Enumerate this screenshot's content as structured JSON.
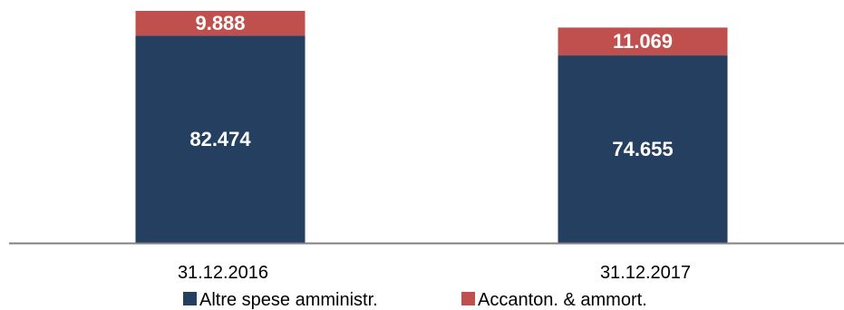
{
  "chart_data": {
    "type": "bar",
    "stacked": true,
    "categories": [
      "31.12.2016",
      "31.12.2017"
    ],
    "series": [
      {
        "name": "Altre spese amministr.",
        "values": [
          82474,
          74655
        ],
        "labels": [
          "82.474",
          "74.655"
        ],
        "color": "#243F60"
      },
      {
        "name": "Accanton. & ammort.",
        "values": [
          9888,
          11069
        ],
        "labels": [
          "9.888",
          "11.069"
        ],
        "color": "#C0504D"
      }
    ],
    "ylim": [
      0,
      92362
    ],
    "grid": false,
    "legend_position": "bottom",
    "axis_color": "#808080"
  }
}
